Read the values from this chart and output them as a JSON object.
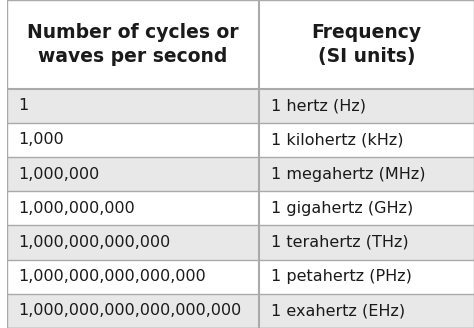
{
  "col1_header": "Number of cycles or\nwaves per second",
  "col2_header": "Frequency\n(SI units)",
  "rows": [
    [
      "1",
      "1 hertz (Hz)"
    ],
    [
      "1,000",
      "1 kilohertz (kHz)"
    ],
    [
      "1,000,000",
      "1 megahertz (MHz)"
    ],
    [
      "1,000,000,000",
      "1 gigahertz (GHz)"
    ],
    [
      "1,000,000,000,000",
      "1 terahertz (THz)"
    ],
    [
      "1,000,000,000,000,000",
      "1 petahertz (PHz)"
    ],
    [
      "1,000,000,000,000,000,000",
      "1 exahertz (EHz)"
    ]
  ],
  "header_bg": "#ffffff",
  "row_bg_odd": "#e8e8e8",
  "row_bg_even": "#ffffff",
  "border_color": "#aaaaaa",
  "text_color": "#1a1a1a",
  "header_font_size": 13.5,
  "row_font_size": 11.5,
  "col_split": 0.54,
  "fig_bg": "#ffffff"
}
